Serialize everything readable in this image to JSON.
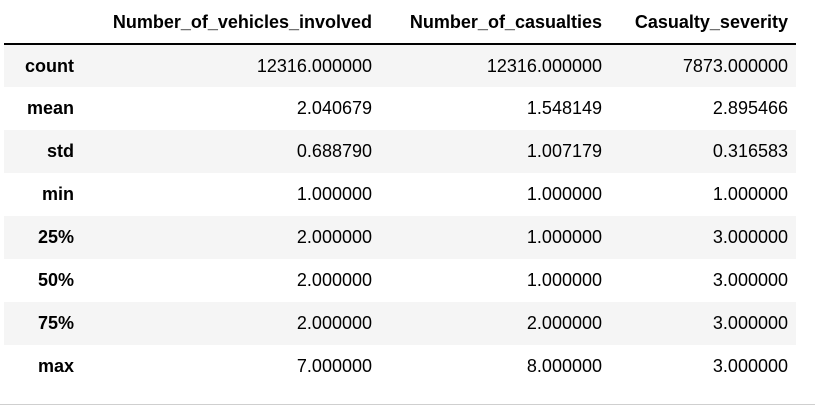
{
  "table": {
    "columns": [
      "",
      "Number_of_vehicles_involved",
      "Number_of_casualties",
      "Casualty_severity"
    ],
    "rows": [
      {
        "label": "count",
        "values": [
          "12316.000000",
          "12316.000000",
          "7873.000000"
        ]
      },
      {
        "label": "mean",
        "values": [
          "2.040679",
          "1.548149",
          "2.895466"
        ]
      },
      {
        "label": "std",
        "values": [
          "0.688790",
          "1.007179",
          "0.316583"
        ]
      },
      {
        "label": "min",
        "values": [
          "1.000000",
          "1.000000",
          "1.000000"
        ]
      },
      {
        "label": "25%",
        "values": [
          "2.000000",
          "1.000000",
          "3.000000"
        ]
      },
      {
        "label": "50%",
        "values": [
          "2.000000",
          "1.000000",
          "3.000000"
        ]
      },
      {
        "label": "75%",
        "values": [
          "2.000000",
          "2.000000",
          "3.000000"
        ]
      },
      {
        "label": "max",
        "values": [
          "7.000000",
          "8.000000",
          "3.000000"
        ]
      }
    ]
  },
  "colors": {
    "row_stripe": "#f5f5f5",
    "header_rule": "#000000",
    "bottom_rule": "#cfcfcf"
  }
}
